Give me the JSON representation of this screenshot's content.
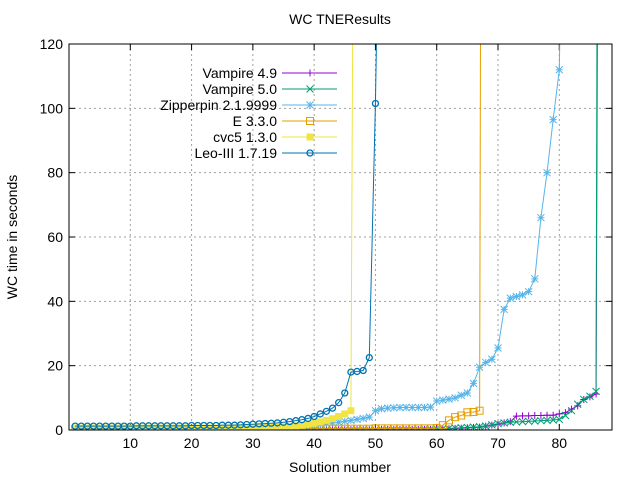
{
  "chart_data": {
    "type": "line",
    "title": "WC TNEResults",
    "xlabel": "Solution number",
    "ylabel": "WC time in seconds",
    "xlim": [
      0,
      88.6
    ],
    "ylim": [
      0,
      120
    ],
    "xticks": [
      10,
      20,
      30,
      40,
      50,
      60,
      70,
      80
    ],
    "yticks": [
      0,
      20,
      40,
      60,
      80,
      100,
      120
    ],
    "grid": true,
    "legend_position": "top-left",
    "series": [
      {
        "name": "Vampire 4.9",
        "color": "#9400d3",
        "marker": "plus",
        "shoots_up_after_x": 86.3,
        "values": [
          0.1,
          0.1,
          0.1,
          0.1,
          0.1,
          0.1,
          0.1,
          0.1,
          0.1,
          0.1,
          0.1,
          0.1,
          0.1,
          0.1,
          0.1,
          0.1,
          0.1,
          0.1,
          0.1,
          0.1,
          0.1,
          0.1,
          0.1,
          0.1,
          0.1,
          0.1,
          0.1,
          0.1,
          0.1,
          0.1,
          0.1,
          0.1,
          0.1,
          0.1,
          0.1,
          0.1,
          0.1,
          0.1,
          0.1,
          0.1,
          0.1,
          0.1,
          0.1,
          0.1,
          0.1,
          0.1,
          0.1,
          0.1,
          0.1,
          0.1,
          0.2,
          0.2,
          0.2,
          0.2,
          0.2,
          0.2,
          0.2,
          0.2,
          0.2,
          0.3,
          0.3,
          0.4,
          0.5,
          0.6,
          0.7,
          0.8,
          0.9,
          1.2,
          1.5,
          1.8,
          2.2,
          2.6,
          4.3,
          4.4,
          4.4,
          4.5,
          4.5,
          4.6,
          4.6,
          5.0,
          5.4,
          6.5,
          7.5,
          9.5,
          10.3,
          11.2
        ]
      },
      {
        "name": "Vampire 5.0",
        "color": "#009e73",
        "marker": "cross",
        "shoots_up_after_x": 86.2,
        "values": [
          0.1,
          0.1,
          0.1,
          0.1,
          0.1,
          0.1,
          0.1,
          0.1,
          0.1,
          0.1,
          0.1,
          0.1,
          0.1,
          0.1,
          0.1,
          0.1,
          0.1,
          0.1,
          0.1,
          0.1,
          0.1,
          0.1,
          0.1,
          0.1,
          0.1,
          0.1,
          0.1,
          0.1,
          0.1,
          0.1,
          0.1,
          0.1,
          0.1,
          0.1,
          0.1,
          0.1,
          0.1,
          0.1,
          0.1,
          0.1,
          0.1,
          0.1,
          0.1,
          0.1,
          0.1,
          0.1,
          0.1,
          0.1,
          0.1,
          0.1,
          0.2,
          0.2,
          0.2,
          0.2,
          0.2,
          0.2,
          0.2,
          0.3,
          0.3,
          0.4,
          0.4,
          0.5,
          0.6,
          0.7,
          0.8,
          0.9,
          1.0,
          1.2,
          1.6,
          2.0,
          2.2,
          2.4,
          2.5,
          2.6,
          2.7,
          2.8,
          2.9,
          3.0,
          3.1,
          3.3,
          4.5,
          6.0,
          8.0,
          9.5,
          10.5,
          12.0
        ]
      },
      {
        "name": "Zipperpin 2.1.9999",
        "color": "#56b4e9",
        "marker": "star",
        "shoots_up_after_x": 80.5,
        "values": [
          0.3,
          0.3,
          0.3,
          0.3,
          0.3,
          0.3,
          0.3,
          0.3,
          0.3,
          0.3,
          0.3,
          0.3,
          0.3,
          0.3,
          0.3,
          0.3,
          0.3,
          0.3,
          0.3,
          0.3,
          0.3,
          0.3,
          0.3,
          0.3,
          0.3,
          0.3,
          0.3,
          0.4,
          0.4,
          0.4,
          0.5,
          0.5,
          0.6,
          0.7,
          0.8,
          0.9,
          1.0,
          1.2,
          1.4,
          1.6,
          1.8,
          2.0,
          2.2,
          2.4,
          2.7,
          3.0,
          3.3,
          3.6,
          4.0,
          6.0,
          6.6,
          6.8,
          6.9,
          7.0,
          7.0,
          7.0,
          7.0,
          7.0,
          7.1,
          9.0,
          9.3,
          9.6,
          10.0,
          10.8,
          11.5,
          14.5,
          19.5,
          21.0,
          22.0,
          25.5,
          37.5,
          41.0,
          41.5,
          42.0,
          43.0,
          47.0,
          66.0,
          80.0,
          96.5,
          112.0
        ]
      },
      {
        "name": "E 3.3.0",
        "color": "#e69f00",
        "marker": "box",
        "shoots_up_after_x": 67.2,
        "values": [
          0.2,
          0.2,
          0.2,
          0.2,
          0.2,
          0.2,
          0.2,
          0.2,
          0.2,
          0.2,
          0.2,
          0.2,
          0.2,
          0.2,
          0.2,
          0.2,
          0.2,
          0.2,
          0.2,
          0.2,
          0.2,
          0.2,
          0.2,
          0.2,
          0.2,
          0.2,
          0.2,
          0.3,
          0.3,
          0.3,
          0.3,
          0.3,
          0.3,
          0.3,
          0.3,
          0.3,
          0.3,
          0.3,
          0.3,
          0.4,
          0.4,
          0.4,
          0.4,
          0.4,
          0.4,
          0.4,
          0.4,
          0.4,
          0.4,
          0.5,
          0.5,
          0.5,
          0.5,
          0.5,
          0.5,
          0.5,
          0.5,
          0.5,
          0.5,
          0.6,
          1.5,
          3.0,
          4.0,
          4.5,
          5.5,
          5.6,
          6.0
        ]
      },
      {
        "name": "cvc5 1.3.0",
        "color": "#f0e442",
        "marker": "filled-box",
        "shoots_up_after_x": 46.4,
        "values": [
          0.6,
          0.6,
          0.6,
          0.6,
          0.6,
          0.6,
          0.6,
          0.6,
          0.6,
          0.6,
          0.6,
          0.6,
          0.6,
          0.6,
          0.6,
          0.6,
          0.6,
          0.6,
          0.6,
          0.6,
          0.6,
          0.6,
          0.6,
          0.6,
          0.6,
          0.6,
          0.7,
          0.7,
          0.7,
          0.7,
          0.8,
          0.8,
          0.9,
          0.9,
          1.0,
          1.1,
          1.3,
          1.5,
          1.8,
          2.1,
          2.5,
          3.0,
          3.5,
          4.2,
          5.0,
          6.0
        ]
      },
      {
        "name": "Leo-III 1.7.19",
        "color": "#0072b2",
        "marker": "circle",
        "shoots_up_after_x": 50.6,
        "values": [
          1.2,
          1.2,
          1.2,
          1.2,
          1.2,
          1.2,
          1.2,
          1.2,
          1.2,
          1.2,
          1.3,
          1.3,
          1.3,
          1.3,
          1.3,
          1.3,
          1.3,
          1.3,
          1.3,
          1.4,
          1.4,
          1.4,
          1.4,
          1.4,
          1.5,
          1.5,
          1.5,
          1.6,
          1.7,
          1.8,
          1.9,
          2.0,
          2.1,
          2.2,
          2.4,
          2.6,
          2.9,
          3.2,
          3.6,
          4.2,
          5.0,
          5.8,
          6.8,
          8.5,
          11.5,
          18.0,
          18.2,
          18.5,
          22.5,
          101.5
        ]
      }
    ]
  }
}
